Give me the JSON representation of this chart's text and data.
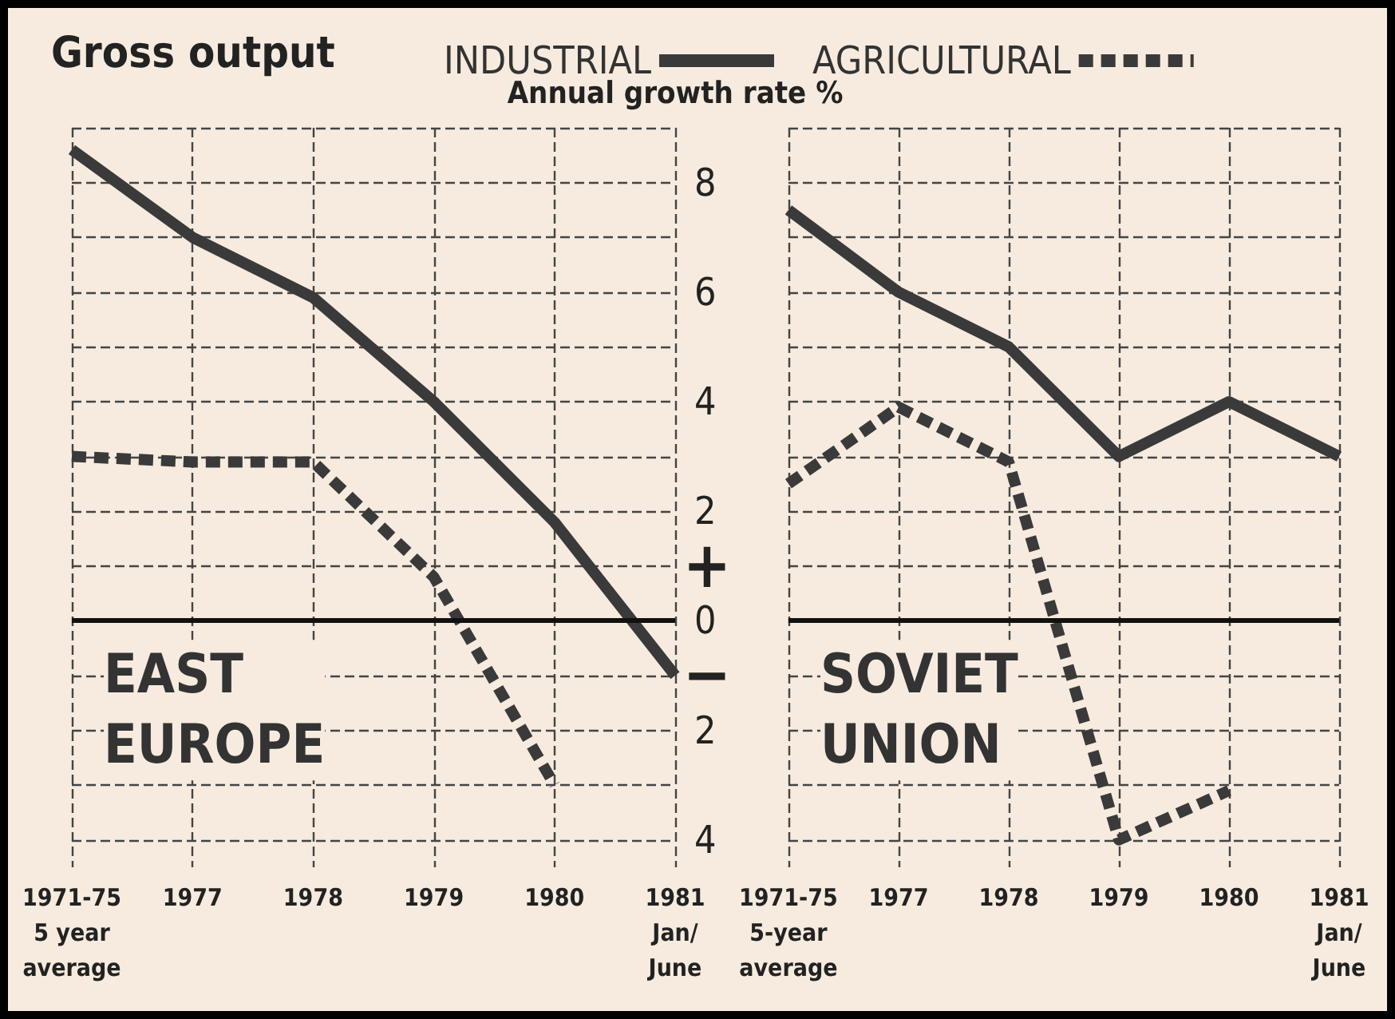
{
  "chart_data": [
    {
      "type": "line",
      "title": "Gross output",
      "subtitle": "EAST\nEUROPE",
      "ylabel": "Annual growth rate %",
      "categories": [
        "1971-75\n5 year\naverage",
        "1977",
        "1978",
        "1979",
        "1980",
        "1981\nJan/\nJune"
      ],
      "series": [
        {
          "name": "INDUSTRIAL",
          "color": "#3a3a3a",
          "line_style": "solid",
          "values": [
            8.6,
            7.0,
            5.9,
            4.0,
            1.8,
            -1.0
          ]
        },
        {
          "name": "AGRICULTURAL",
          "color": "#3a3a3a",
          "line_style": "dashed",
          "values": [
            3.0,
            2.9,
            2.9,
            0.8,
            -3.0,
            null
          ]
        }
      ],
      "ylim": [
        -4.5,
        9
      ],
      "yticks": [
        {
          "value": 9,
          "label": null
        },
        8,
        {
          "value": 7,
          "label": null
        },
        6,
        {
          "value": 5,
          "label": null
        },
        4,
        {
          "value": 3,
          "label": null
        },
        2,
        {
          "value": 1,
          "label": null
        },
        0,
        {
          "value": -1,
          "label": null
        },
        {
          "value": -2,
          "label": "2"
        },
        {
          "value": -3,
          "label": null
        },
        {
          "value": -4,
          "label": "4"
        }
      ],
      "annotations": [
        "+",
        "−"
      ],
      "ref_lines": [
        {
          "axis": "y",
          "value": 0
        }
      ],
      "grid": true,
      "legend": "top",
      "marker": "none"
    },
    {
      "type": "line",
      "subtitle": "SOVIET\nUNION",
      "categories": [
        "1971-75\n5-year\naverage",
        "1977",
        "1978",
        "1979",
        "1980",
        "1981\nJan/\nJune"
      ],
      "series": [
        {
          "color": "#3a3a3a",
          "line_style": "solid",
          "values": [
            7.5,
            6.0,
            5.0,
            3.0,
            4.0,
            3.0
          ]
        },
        {
          "color": "#3a3a3a",
          "line_style": "dashed",
          "values": [
            2.5,
            3.9,
            2.9,
            -4.0,
            -3.1,
            null
          ]
        }
      ],
      "ylim": [
        -4.5,
        9
      ],
      "yticks": [
        9,
        8,
        7,
        6,
        5,
        4,
        3,
        2,
        1,
        0,
        -1,
        -2,
        -3,
        -4
      ],
      "ref_lines": [
        {
          "axis": "y",
          "value": 0
        }
      ],
      "tick_labels": "x",
      "grid": true,
      "legend": false,
      "marker": "none"
    }
  ]
}
